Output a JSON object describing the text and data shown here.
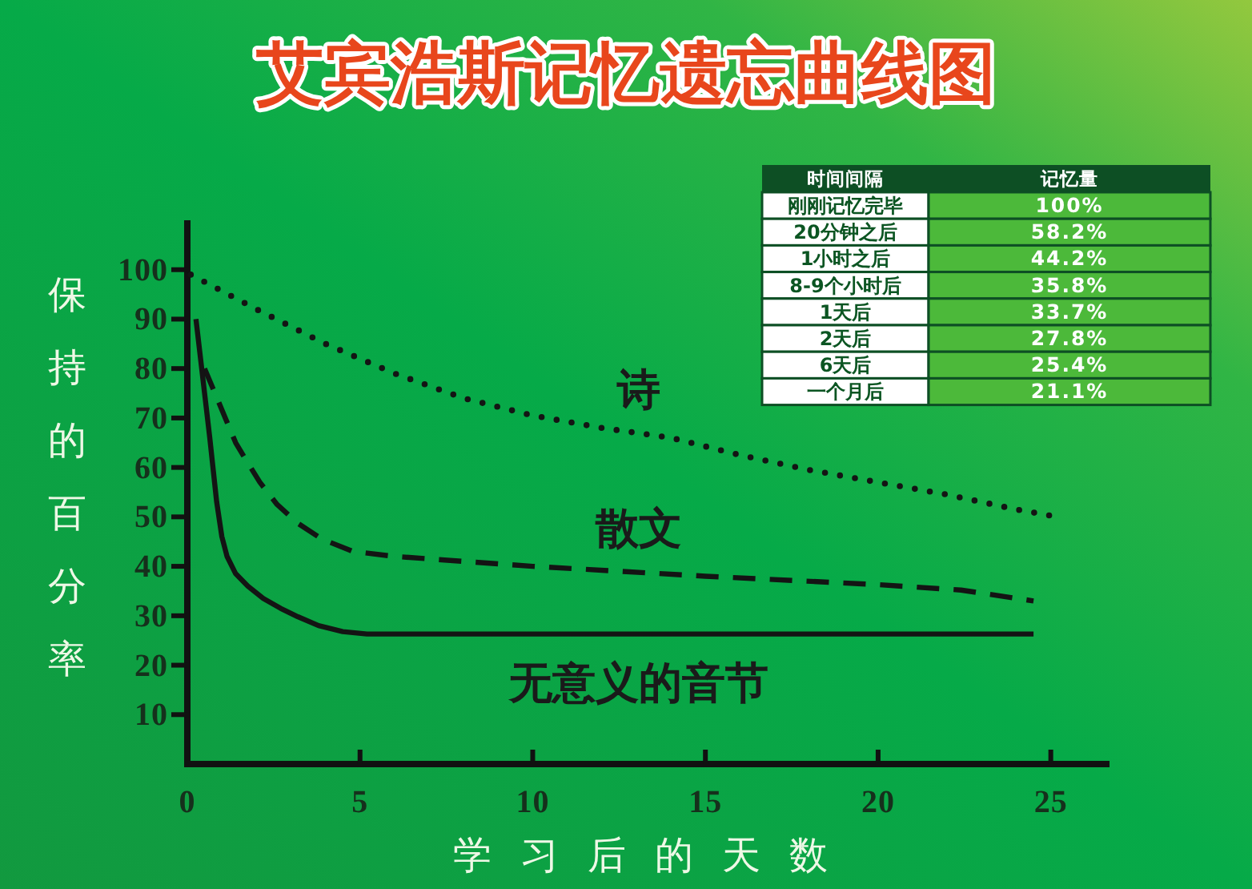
{
  "chart_data": [
    {
      "type": "line",
      "title": "艾宾浩斯记忆遗忘曲线图",
      "xlabel": "学习后的天数",
      "ylabel": "保持的百分率",
      "xlim": [
        0,
        26.7
      ],
      "ylim": [
        0,
        110
      ],
      "xticks": [
        0,
        5,
        10,
        15,
        20,
        25
      ],
      "yticks": [
        10,
        20,
        30,
        40,
        50,
        60,
        70,
        80,
        90,
        100
      ],
      "grid": false,
      "legend": false,
      "marker": "none",
      "series": [
        {
          "name": "诗",
          "color": "#141414",
          "line_style": "dotted",
          "x": [
            0.1,
            2,
            4,
            6,
            8,
            10,
            12,
            14,
            16,
            18,
            20,
            22,
            24,
            25.2
          ],
          "values": [
            99,
            92,
            85,
            79,
            74,
            70.5,
            68,
            66,
            62.5,
            59.5,
            57,
            54.5,
            51.5,
            50
          ]
        },
        {
          "name": "散文",
          "color": "#141414",
          "line_style": "dashed",
          "x": [
            0.5,
            0.8,
            1.1,
            1.4,
            1.7,
            2.1,
            2.6,
            3.2,
            3.9,
            4.8,
            6,
            8,
            10,
            15,
            20,
            22.4,
            24.5
          ],
          "values": [
            80,
            75,
            70,
            65,
            61.5,
            57,
            52.5,
            48.7,
            45.5,
            43,
            42,
            41,
            40,
            38,
            36.3,
            35.2,
            33
          ]
        },
        {
          "name": "无意义的音节",
          "color": "#141414",
          "line_style": "solid",
          "x": [
            0.25,
            0.45,
            0.65,
            0.85,
            1.0,
            1.15,
            1.4,
            1.75,
            2.2,
            2.7,
            3.2,
            3.8,
            4.5,
            5.2,
            10,
            24.5
          ],
          "values": [
            90,
            78,
            66,
            53,
            46,
            42,
            38.5,
            36,
            33.5,
            31.5,
            29.8,
            28,
            26.8,
            26.3,
            26.3,
            26.3
          ]
        }
      ]
    },
    {
      "type": "other",
      "xlabel": "时间间隔",
      "ylabel": "记忆量",
      "categories": [
        "刚刚记忆完毕",
        "20分钟之后",
        "1小时之后",
        "8-9个小时后",
        "1天后",
        "2天后",
        "6天后",
        "一个月后"
      ],
      "value_labels": [
        "100%",
        "58.2%",
        "44.2%",
        "35.8%",
        "33.7%",
        "27.8%",
        "25.4%",
        "21.1%"
      ]
    }
  ]
}
